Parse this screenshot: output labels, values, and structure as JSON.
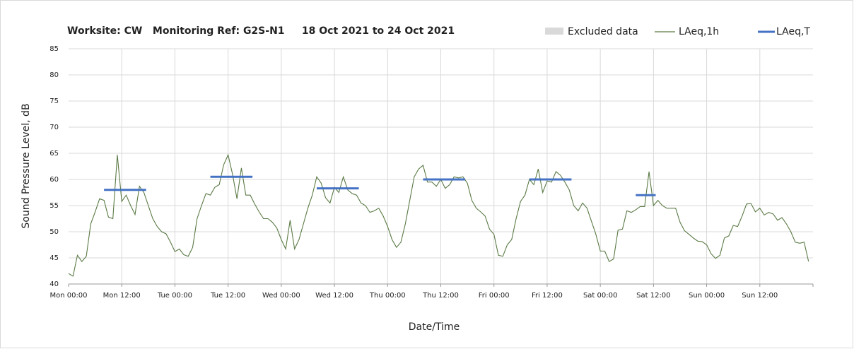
{
  "chart_data": {
    "type": "line",
    "title": "Worksite: CW   Monitoring Ref: G2S-N1     18 Oct 2021 to 24 Oct 2021",
    "xlabel": "Date/Time",
    "ylabel": "Sound Pressure Level, dB",
    "xlim": [
      0,
      168
    ],
    "ylim": [
      40,
      85
    ],
    "yticks": [
      40,
      45,
      50,
      55,
      60,
      65,
      70,
      75,
      80,
      85
    ],
    "xticks": [
      {
        "value": 0,
        "label": "Mon 00:00"
      },
      {
        "value": 12,
        "label": "Mon 12:00"
      },
      {
        "value": 24,
        "label": "Tue 00:00"
      },
      {
        "value": 36,
        "label": "Tue 12:00"
      },
      {
        "value": 48,
        "label": "Wed 00:00"
      },
      {
        "value": 60,
        "label": "Wed 12:00"
      },
      {
        "value": 72,
        "label": "Thu 00:00"
      },
      {
        "value": 84,
        "label": "Thu 12:00"
      },
      {
        "value": 96,
        "label": "Fri 00:00"
      },
      {
        "value": 108,
        "label": "Fri 12:00"
      },
      {
        "value": 120,
        "label": "Sat 00:00"
      },
      {
        "value": 132,
        "label": "Sat 12:00"
      },
      {
        "value": 144,
        "label": "Sun 00:00"
      },
      {
        "value": 156,
        "label": "Sun 12:00"
      }
    ],
    "grid": true,
    "legend_position": "top-right",
    "excluded": {
      "name": "Excluded data",
      "color": "#d9d9d9"
    },
    "x": [
      0,
      1,
      2,
      3,
      4,
      5,
      6,
      7,
      8,
      9,
      10,
      11,
      12,
      13,
      14,
      15,
      16,
      17,
      18,
      19,
      20,
      21,
      22,
      23,
      24,
      25,
      26,
      27,
      28,
      29,
      30,
      31,
      32,
      33,
      34,
      35,
      36,
      37,
      38,
      39,
      40,
      41,
      42,
      43,
      44,
      45,
      46,
      47,
      48,
      49,
      50,
      51,
      52,
      53,
      54,
      55,
      56,
      57,
      58,
      59,
      60,
      61,
      62,
      63,
      64,
      65,
      66,
      67,
      68,
      69,
      70,
      71,
      72,
      73,
      74,
      75,
      76,
      77,
      78,
      79,
      80,
      81,
      82,
      83,
      84,
      85,
      86,
      87,
      88,
      89,
      90,
      91,
      92,
      93,
      94,
      95,
      96,
      97,
      98,
      99,
      100,
      101,
      102,
      103,
      104,
      105,
      106,
      107,
      108,
      109,
      110,
      111,
      112,
      113,
      114,
      115,
      116,
      117,
      118,
      119,
      120,
      121,
      122,
      123,
      124,
      125,
      126,
      127,
      128,
      129,
      130,
      131,
      132,
      133,
      134,
      135,
      136,
      137,
      138,
      139,
      140,
      141,
      142,
      143,
      144,
      145,
      146,
      147,
      148,
      149,
      150,
      151,
      152,
      153,
      154,
      155,
      156,
      157,
      158,
      159,
      160,
      161,
      162,
      163,
      164,
      165,
      166,
      167
    ],
    "series": [
      {
        "name": "LAeq,1h",
        "color": "#5a7a45",
        "values": [
          42,
          41.5,
          45.5,
          44.3,
          45.3,
          51.5,
          53.8,
          56.3,
          56,
          52.8,
          52.5,
          64.7,
          55.8,
          57,
          55,
          53.3,
          58.7,
          57.5,
          55,
          52.5,
          51,
          50,
          49.6,
          48,
          46.2,
          46.7,
          45.6,
          45.3,
          47,
          52.5,
          55,
          57.3,
          57,
          58.5,
          59,
          62.8,
          64.7,
          61,
          56.3,
          62.2,
          57,
          57,
          55.3,
          53.8,
          52.5,
          52.5,
          51.8,
          50.7,
          48.5,
          46.7,
          52.2,
          46.7,
          48.5,
          51.5,
          54.5,
          57,
          60.5,
          59.3,
          56.5,
          55.5,
          58.5,
          57.5,
          60.5,
          58,
          57.3,
          57,
          55.5,
          55,
          53.7,
          54,
          54.5,
          53,
          51,
          48.5,
          47,
          48,
          51.5,
          56,
          60.5,
          62,
          62.7,
          59.5,
          59.5,
          58.7,
          60,
          58.3,
          59,
          60.5,
          60.3,
          60.5,
          59.3,
          56,
          54.5,
          53.8,
          53,
          50.5,
          49.5,
          45.5,
          45.3,
          47.5,
          48.5,
          52.5,
          55.8,
          57,
          60,
          59,
          62,
          57.5,
          59.7,
          59.5,
          61.5,
          60.8,
          59.5,
          58,
          55,
          54,
          55.5,
          54.5,
          52,
          49.5,
          46.3,
          46.3,
          44.3,
          44.8,
          50.3,
          50.5,
          54,
          53.7,
          54.2,
          54.8,
          54.8,
          61.5,
          55,
          56,
          55,
          54.5,
          54.5,
          54.5,
          51.8,
          50.2,
          49.5,
          48.8,
          48.2,
          48.1,
          47.5,
          45.8,
          44.9,
          45.5,
          48.8,
          49.2,
          51.2,
          51,
          53,
          55.3,
          55.4,
          53.8,
          54.5,
          53.2,
          53.7,
          53.4,
          52.2,
          52.7,
          51.5,
          50,
          48,
          47.8,
          48,
          44.3
        ]
      },
      {
        "name": "LAeq,T",
        "color": "#4472c4",
        "segments": [
          {
            "x": [
              8,
              17.5
            ],
            "value": 58
          },
          {
            "x": [
              32,
              41.5
            ],
            "value": 60.5
          },
          {
            "x": [
              56,
              65.5
            ],
            "value": 58.3
          },
          {
            "x": [
              80,
              89.5
            ],
            "value": 60
          },
          {
            "x": [
              104,
              113.5
            ],
            "value": 60
          },
          {
            "x": [
              128,
              132.5
            ],
            "value": 57
          }
        ]
      }
    ]
  }
}
